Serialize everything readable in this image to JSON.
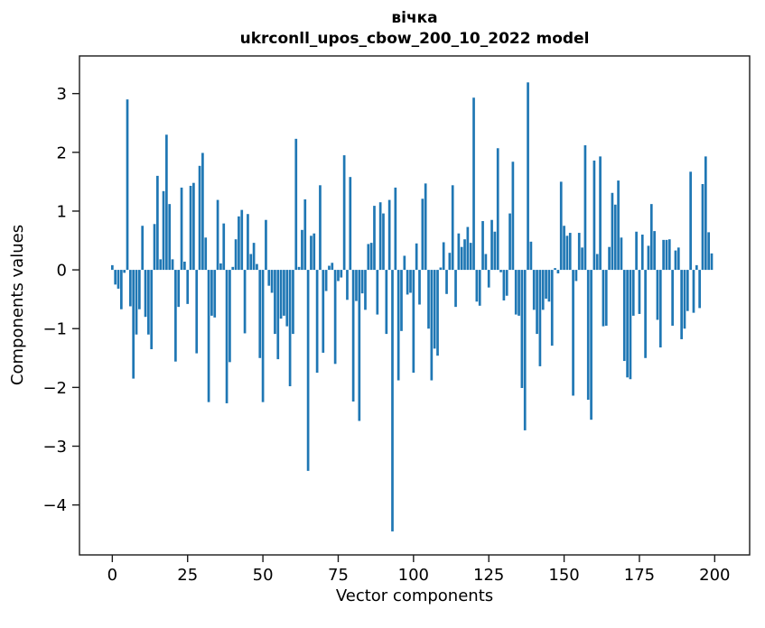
{
  "chart_data": {
    "type": "bar",
    "title": "вічка",
    "subtitle": "ukrconll_upos_cbow_200_10_2022 model",
    "xlabel": "Vector components",
    "ylabel": "Components values",
    "n_components": 200,
    "x_start": 0,
    "values": [
      0.08,
      -0.25,
      -0.32,
      -0.67,
      -0.05,
      2.9,
      -0.62,
      -1.85,
      -1.1,
      -0.67,
      0.75,
      -0.8,
      -1.1,
      -1.35,
      0.78,
      1.6,
      0.18,
      1.34,
      2.3,
      1.12,
      0.18,
      -1.56,
      -0.63,
      1.4,
      0.14,
      -0.58,
      1.43,
      1.48,
      -1.42,
      1.77,
      1.99,
      0.55,
      -2.25,
      -0.78,
      -0.81,
      1.19,
      0.11,
      0.79,
      -2.27,
      -1.57,
      0.05,
      0.52,
      0.91,
      1.02,
      -1.08,
      0.95,
      0.27,
      0.46,
      0.1,
      -1.5,
      -2.25,
      0.85,
      -0.27,
      -0.39,
      -1.09,
      -1.52,
      -0.83,
      -0.78,
      -0.96,
      -1.98,
      -1.09,
      2.23,
      0.05,
      0.68,
      1.2,
      -3.42,
      0.58,
      0.62,
      -1.75,
      1.44,
      -1.41,
      -0.36,
      0.07,
      0.12,
      -1.6,
      -0.19,
      -0.13,
      1.95,
      -0.51,
      1.58,
      -2.24,
      -0.53,
      -2.57,
      -0.4,
      -0.68,
      0.44,
      0.46,
      1.09,
      -0.76,
      1.15,
      0.96,
      -1.09,
      1.19,
      -4.45,
      1.4,
      -1.88,
      -1.04,
      0.24,
      -0.42,
      -0.39,
      -1.75,
      0.45,
      -0.59,
      1.21,
      1.47,
      -1.0,
      -1.88,
      -1.34,
      -1.46,
      0.04,
      0.47,
      -0.41,
      0.29,
      1.44,
      -0.63,
      0.62,
      0.39,
      0.52,
      0.73,
      0.46,
      2.93,
      -0.54,
      -0.61,
      0.83,
      0.27,
      -0.3,
      0.85,
      0.65,
      2.07,
      -0.04,
      -0.52,
      -0.44,
      0.96,
      1.84,
      -0.76,
      -0.78,
      -2.01,
      -2.73,
      3.19,
      0.48,
      -0.68,
      -1.09,
      -1.64,
      -0.68,
      -0.49,
      -0.54,
      -1.29,
      0.03,
      -0.06,
      1.5,
      0.75,
      0.58,
      0.63,
      -2.14,
      -0.19,
      0.63,
      0.38,
      2.12,
      -2.21,
      -2.55,
      1.86,
      0.27,
      1.93,
      -0.96,
      -0.95,
      0.39,
      1.31,
      1.11,
      1.52,
      0.55,
      -1.55,
      -1.83,
      -1.86,
      -0.78,
      0.65,
      -0.75,
      0.6,
      -1.5,
      0.41,
      1.12,
      0.66,
      -0.85,
      -1.32,
      0.51,
      0.51,
      0.52,
      -0.95,
      0.33,
      0.38,
      -1.18,
      -1.0,
      -0.7,
      1.67,
      -0.73,
      0.08,
      -0.65,
      1.46,
      1.93,
      0.64,
      0.28
    ],
    "xticks": [
      0,
      25,
      50,
      75,
      100,
      125,
      150,
      175,
      200
    ],
    "yticks": [
      3,
      2,
      1,
      0,
      -1,
      -2,
      -3,
      -4
    ],
    "xlim": [
      -10.9,
      211.6
    ],
    "ylim": [
      -4.85,
      3.64
    ],
    "bar_color": "#1f77b4",
    "axis_color": "#1a1a1a",
    "background": "#ffffff",
    "grid": false
  }
}
